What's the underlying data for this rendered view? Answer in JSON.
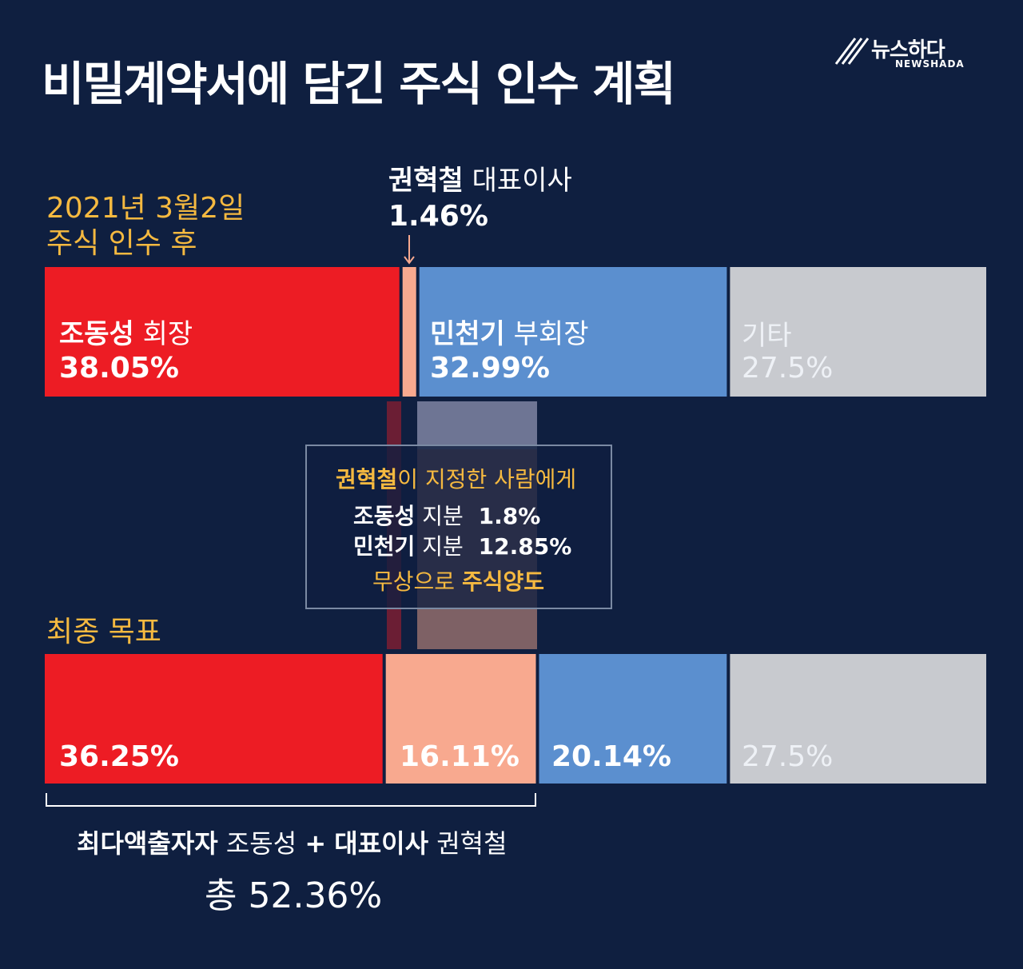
{
  "title": "비밀계약서에 담긴 주식 인수 계획",
  "brand": {
    "name": "뉴스하다",
    "sub": "NEWSHADA"
  },
  "after_acquisition": {
    "label_line1": "2021년 3월2일",
    "label_line2": "주식 인수 후"
  },
  "ceo_callout": {
    "name": "권혁철",
    "role": "대표이사",
    "value": "1.46%"
  },
  "final_target": {
    "label": "최종 목표"
  },
  "note": {
    "line1_name": "권혁철",
    "line1_rest": "이 지정한 사람에게",
    "line2_name": "조동성",
    "line2_mid": "지분",
    "line2_value": "1.8%",
    "line3_name": "민천기",
    "line3_mid": "지분",
    "line3_value": "12.85%",
    "line4_prefix": "무상으로",
    "line4_bold": "주식양도"
  },
  "summary": {
    "bold1": "최다액출자자",
    "name1": "조동성",
    "plus": "+",
    "bold2": "대표이사",
    "name2": "권혁철",
    "total": "총 52.36%"
  },
  "chart_data": [
    {
      "type": "bar",
      "title": "2021년 3월2일 주식 인수 후",
      "orientation": "stacked-horizontal",
      "segments": [
        {
          "name": "조동성",
          "role": "회장",
          "label": "38.05%",
          "value": 38.05,
          "color": "#ed1c24"
        },
        {
          "name": "권혁철",
          "role": "대표이사",
          "label": "1.46%",
          "value": 1.46,
          "color": "#f8a98f"
        },
        {
          "name": "민천기",
          "role": "부회장",
          "label": "32.99%",
          "value": 32.99,
          "color": "#5b8fcf"
        },
        {
          "name": "기타",
          "role": "",
          "label": "27.5%",
          "value": 27.5,
          "color": "#c8cacf"
        }
      ]
    },
    {
      "type": "bar",
      "title": "최종 목표",
      "orientation": "stacked-horizontal",
      "segments": [
        {
          "name": "조동성",
          "label": "36.25%",
          "value": 36.25,
          "color": "#ed1c24"
        },
        {
          "name": "권혁철",
          "label": "16.11%",
          "value": 16.11,
          "color": "#f8a98f"
        },
        {
          "name": "민천기",
          "label": "20.14%",
          "value": 20.14,
          "color": "#5b8fcf"
        },
        {
          "name": "기타",
          "label": "27.5%",
          "value": 27.5,
          "color": "#c8cacf"
        }
      ]
    }
  ]
}
